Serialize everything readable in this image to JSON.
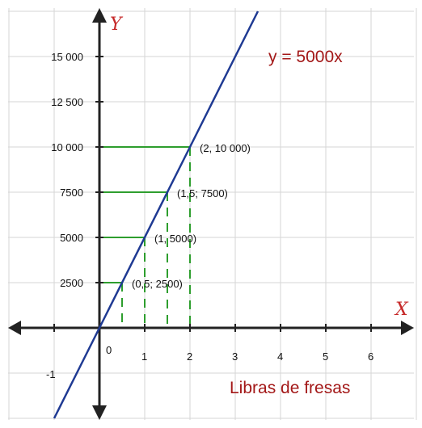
{
  "chart_data": {
    "type": "line",
    "equation": "y = 5000x",
    "xlabel": "Libras de fresas",
    "axis_names": {
      "x": "X",
      "y": "Y"
    },
    "xlim": [
      -1,
      7
    ],
    "ylim": [
      -2500,
      17500
    ],
    "origin_label": "0",
    "x_ticks": [
      {
        "value": -1,
        "label": "-1"
      },
      {
        "value": 1,
        "label": "1"
      },
      {
        "value": 2,
        "label": "2"
      },
      {
        "value": 3,
        "label": "3"
      },
      {
        "value": 4,
        "label": "4"
      },
      {
        "value": 5,
        "label": "5"
      },
      {
        "value": 6,
        "label": "6"
      }
    ],
    "y_ticks": [
      {
        "value": 2500,
        "label": "2500"
      },
      {
        "value": 5000,
        "label": "5000"
      },
      {
        "value": 7500,
        "label": "7500"
      },
      {
        "value": 10000,
        "label": "10 000"
      },
      {
        "value": 12500,
        "label": "12 500"
      },
      {
        "value": 15000,
        "label": "15 000"
      }
    ],
    "grid": true,
    "series": [
      {
        "slope": 5000,
        "x": [
          -1,
          3.5
        ],
        "color": "#1f3a93"
      }
    ],
    "points": [
      {
        "x": 0.5,
        "y": 2500,
        "label": "(0,5; 2500)"
      },
      {
        "x": 1,
        "y": 5000,
        "label": "(1, 5000)"
      },
      {
        "x": 1.5,
        "y": 7500,
        "label": "(1,5; 7500)"
      },
      {
        "x": 2,
        "y": 10000,
        "label": "(2, 10 000)"
      }
    ],
    "colors": {
      "line": "#1f3a93",
      "guides": "#2e9e2e",
      "axes": "#222222",
      "grid": "#d5d5d5",
      "accent": "#a31818"
    }
  }
}
